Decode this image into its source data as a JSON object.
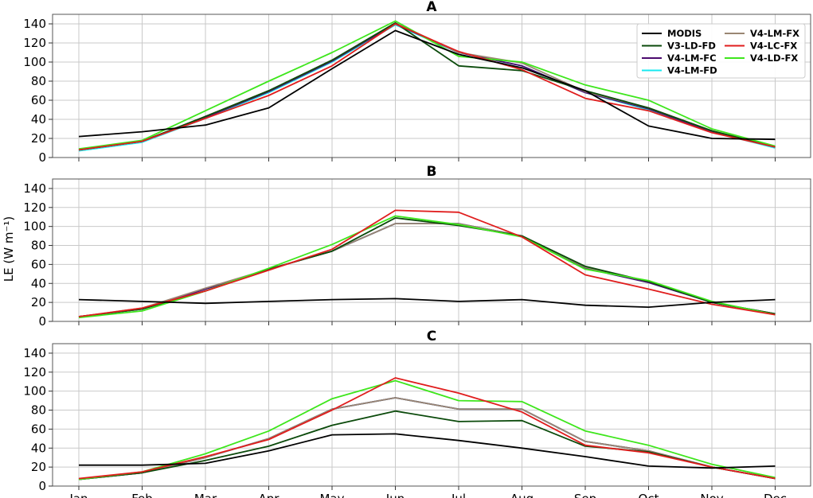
{
  "chart_data": {
    "type": "line",
    "ylabel": "LE (W m⁻¹)",
    "x": [
      "Jan",
      "Feb",
      "Mar",
      "Apr",
      "May",
      "Jun",
      "Jul",
      "Aug",
      "Sep",
      "Oct",
      "Nov",
      "Dec"
    ],
    "ylim": [
      0,
      150
    ],
    "yticks": [
      0,
      20,
      40,
      60,
      80,
      100,
      120,
      140
    ],
    "grid": true,
    "legend": {
      "location": "top-right of panel A",
      "columns": 2,
      "entries": [
        "MODIS",
        "V3-LD-FD",
        "V4-LM-FC",
        "V4-LM-FD",
        "V4-LM-FX",
        "V4-LC-FX",
        "V4-LD-FX"
      ]
    },
    "colors": {
      "MODIS": "#000000",
      "V3-LD-FD": "#0b4a0b",
      "V4-LM-FC": "#4b0a6e",
      "V4-LM-FD": "#18e8f0",
      "V4-LM-FX": "#9a8673",
      "V4-LC-FX": "#e01d1d",
      "V4-LD-FX": "#3ee61c"
    },
    "panels": [
      {
        "title": "A",
        "series": [
          {
            "name": "V4-LM-FD",
            "values": [
              7,
              16,
              41,
              68,
              100,
              139,
              110,
              96,
              68,
              50,
              27,
              10
            ]
          },
          {
            "name": "V4-LM-FC",
            "values": [
              8,
              17,
              42,
              69,
              101,
              140,
              110,
              96,
              68,
              51,
              27,
              11
            ]
          },
          {
            "name": "V4-LM-FX",
            "values": [
              8,
              17,
              43,
              70,
              102,
              141,
              110,
              99,
              69,
              52,
              28,
              11
            ]
          },
          {
            "name": "V3-LD-FD",
            "values": [
              8,
              17,
              43,
              70,
              102,
              141,
              96,
              91,
              70,
              52,
              28,
              11
            ]
          },
          {
            "name": "V4-LD-FX",
            "values": [
              9,
              18,
              49,
              80,
              110,
              143,
              106,
              100,
              76,
              60,
              30,
              12
            ]
          },
          {
            "name": "V4-LC-FX",
            "values": [
              8,
              17,
              41,
              65,
              96,
              140,
              111,
              92,
              62,
              49,
              26,
              11
            ]
          },
          {
            "name": "MODIS",
            "values": [
              22,
              27,
              34,
              52,
              93,
              133,
              108,
              94,
              70,
              33,
              20,
              19
            ]
          }
        ]
      },
      {
        "title": "B",
        "series": [
          {
            "name": "V4-LM-FD",
            "values": [
              5,
              13,
              34,
              55,
              74,
              103,
              103,
              90,
              56,
              41,
              20,
              8
            ]
          },
          {
            "name": "V4-LM-FC",
            "values": [
              5,
              13,
              34,
              55,
              74,
              103,
              103,
              90,
              56,
              41,
              20,
              8
            ]
          },
          {
            "name": "V4-LM-FX",
            "values": [
              5,
              14,
              35,
              55,
              74,
              103,
              103,
              90,
              57,
              42,
              20,
              8
            ]
          },
          {
            "name": "V3-LD-FD",
            "values": [
              5,
              13,
              32,
              55,
              74,
              109,
              101,
              90,
              58,
              42,
              20,
              8
            ]
          },
          {
            "name": "V4-LD-FX",
            "values": [
              4,
              11,
              32,
              56,
              81,
              111,
              102,
              89,
              55,
              43,
              21,
              7
            ]
          },
          {
            "name": "V4-LC-FX",
            "values": [
              5,
              14,
              32,
              54,
              76,
              117,
              115,
              89,
              49,
              34,
              18,
              7
            ]
          },
          {
            "name": "MODIS",
            "values": [
              23,
              21,
              19,
              21,
              23,
              24,
              21,
              23,
              17,
              15,
              20,
              23
            ]
          }
        ]
      },
      {
        "title": "C",
        "series": [
          {
            "name": "V4-LM-FD",
            "values": [
              7,
              14,
              30,
              50,
              81,
              93,
              81,
              81,
              47,
              37,
              20,
              8
            ]
          },
          {
            "name": "V4-LM-FC",
            "values": [
              7,
              14,
              30,
              50,
              81,
              93,
              81,
              81,
              47,
              37,
              20,
              8
            ]
          },
          {
            "name": "V4-LM-FX",
            "values": [
              7,
              14,
              30,
              50,
              81,
              93,
              81,
              81,
              47,
              37,
              20,
              8
            ]
          },
          {
            "name": "V3-LD-FD",
            "values": [
              7,
              14,
              27,
              42,
              64,
              79,
              68,
              69,
              42,
              36,
              20,
              8
            ]
          },
          {
            "name": "V4-LD-FX",
            "values": [
              7,
              15,
              34,
              58,
              92,
              111,
              90,
              89,
              58,
              43,
              23,
              9
            ]
          },
          {
            "name": "V4-LC-FX",
            "values": [
              8,
              15,
              31,
              49,
              80,
              114,
              98,
              78,
              43,
              35,
              20,
              8
            ]
          },
          {
            "name": "MODIS",
            "values": [
              22,
              22,
              24,
              37,
              54,
              55,
              48,
              40,
              31,
              21,
              19,
              21
            ]
          }
        ]
      }
    ]
  }
}
